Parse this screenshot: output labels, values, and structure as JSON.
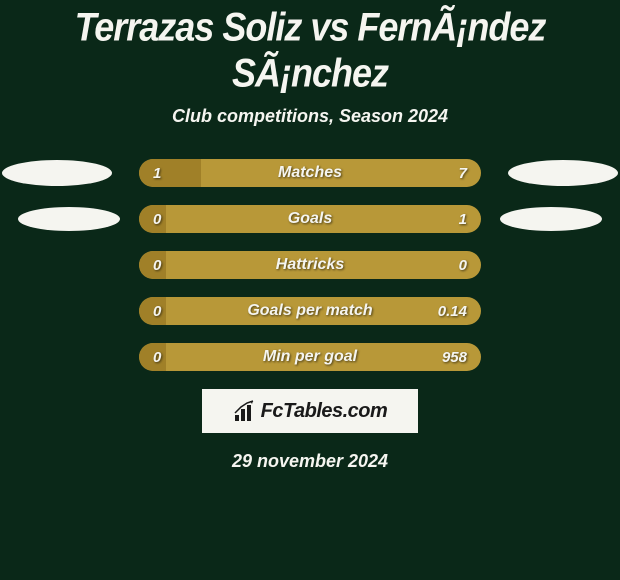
{
  "title": "Terrazas Soliz vs FernÃ¡ndez SÃ¡nchez",
  "subtitle": "Club competitions, Season 2024",
  "rows": [
    {
      "label": "Matches",
      "left_value": "1",
      "right_value": "7",
      "fill_percent": 18,
      "show_ellipses": true,
      "ellipse_size": "large"
    },
    {
      "label": "Goals",
      "left_value": "0",
      "right_value": "1",
      "fill_percent": 8,
      "show_ellipses": true,
      "ellipse_size": "small"
    },
    {
      "label": "Hattricks",
      "left_value": "0",
      "right_value": "0",
      "fill_percent": 8,
      "show_ellipses": false
    },
    {
      "label": "Goals per match",
      "left_value": "0",
      "right_value": "0.14",
      "fill_percent": 8,
      "show_ellipses": false
    },
    {
      "label": "Min per goal",
      "left_value": "0",
      "right_value": "958",
      "fill_percent": 8,
      "show_ellipses": false
    }
  ],
  "logo_text": "FcTables.com",
  "date_text": "29 november 2024",
  "colors": {
    "background": "#0a2818",
    "bar_bg": "#b89838",
    "bar_fill": "#a08028",
    "text": "#f5f5f0",
    "logo_bg": "#f5f5f0",
    "logo_text": "#1a1a1a"
  }
}
